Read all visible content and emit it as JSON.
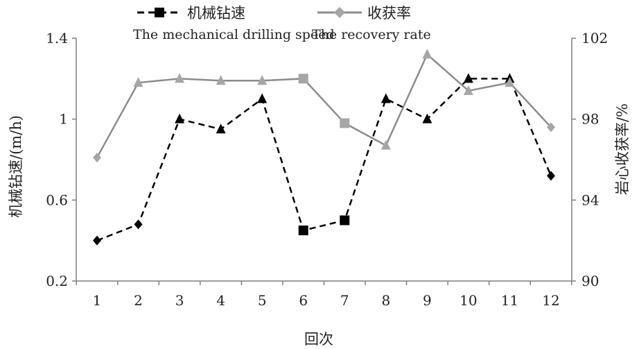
{
  "chart_data": {
    "type": "line",
    "categories": [
      "1",
      "2",
      "3",
      "4",
      "5",
      "6",
      "7",
      "8",
      "9",
      "10",
      "11",
      "12"
    ],
    "xlabel": "回次",
    "ylabel_left": "机械钻速/(m/h)",
    "ylabel_right": "岩心收获率/%",
    "ylim_left": [
      0.2,
      1.4
    ],
    "yticks_left": [
      "0.2",
      "0.6",
      "1",
      "1.4"
    ],
    "ylim_right": [
      90,
      102
    ],
    "yticks_right": [
      "90",
      "94",
      "98",
      "102"
    ],
    "legend_position": "top",
    "grid": false,
    "series": [
      {
        "name": "机械钻速",
        "name_en": "The mechanical drilling speed",
        "axis": "left",
        "values": [
          0.4,
          0.48,
          1.0,
          0.95,
          1.1,
          0.45,
          0.5,
          1.1,
          1.0,
          1.2,
          1.2,
          0.72
        ],
        "markers": [
          "diamond",
          "diamond",
          "triangle",
          "triangle",
          "triangle",
          "square",
          "square",
          "triangle",
          "triangle",
          "triangle",
          "triangle",
          "diamond"
        ],
        "color": "#000000",
        "line_style": "dashed"
      },
      {
        "name": "收获率",
        "name_en": "The recovery rate",
        "axis": "right",
        "values": [
          96.1,
          99.8,
          100.0,
          99.9,
          99.9,
          100.0,
          97.8,
          96.7,
          101.2,
          99.4,
          99.8,
          97.6
        ],
        "markers": [
          "diamond",
          "triangle",
          "triangle",
          "triangle",
          "triangle",
          "square",
          "square",
          "triangle",
          "triangle",
          "triangle",
          "triangle",
          "diamond"
        ],
        "color": "#8c8c8c",
        "line_style": "solid"
      }
    ]
  }
}
